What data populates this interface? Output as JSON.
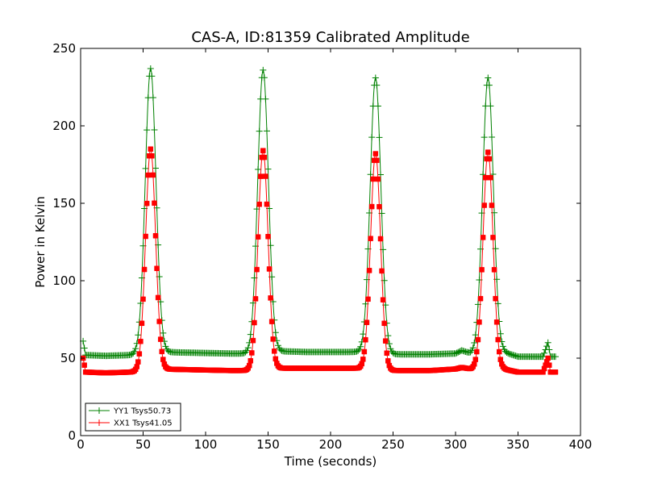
{
  "chart_data": {
    "type": "line",
    "title": "CAS-A, ID:81359 Calibrated Amplitude",
    "xlabel": "Time (seconds)",
    "ylabel": "Power in Kelvin",
    "xlim": [
      0,
      400
    ],
    "ylim": [
      0,
      250
    ],
    "xticks": [
      "0",
      "50",
      "100",
      "150",
      "200",
      "250",
      "300",
      "350",
      "400"
    ],
    "yticks": [
      "0",
      "50",
      "100",
      "150",
      "200",
      "250"
    ],
    "grid": false,
    "legend_position": "lower-left",
    "series": [
      {
        "name": "YY1 Tsys50.73",
        "color": "#008000",
        "marker": "plus",
        "baseline": [
          [
            2,
            61
          ],
          [
            4,
            52
          ],
          [
            20,
            51.5
          ],
          [
            40,
            52
          ],
          [
            50,
            53
          ],
          [
            62,
            54
          ],
          [
            90,
            53.5
          ],
          [
            120,
            53
          ],
          [
            135,
            53
          ],
          [
            158,
            54.5
          ],
          [
            180,
            54
          ],
          [
            220,
            54
          ],
          [
            248,
            52.5
          ],
          [
            280,
            52.5
          ],
          [
            300,
            53
          ],
          [
            305,
            55
          ],
          [
            312,
            53
          ],
          [
            338,
            54
          ],
          [
            350,
            51
          ],
          [
            370,
            51
          ],
          [
            374,
            60
          ],
          [
            376,
            51
          ],
          [
            380,
            51
          ]
        ],
        "peaks": [
          {
            "center": 56,
            "amplitude": 237,
            "width": 4.3
          },
          {
            "center": 146,
            "amplitude": 236,
            "width": 4.3
          },
          {
            "center": 236,
            "amplitude": 231,
            "width": 4.3
          },
          {
            "center": 326,
            "amplitude": 231,
            "width": 4.3
          }
        ]
      },
      {
        "name": "XX1 Tsys41.05",
        "color": "#ff0000",
        "marker": "square",
        "baseline": [
          [
            2,
            50
          ],
          [
            4,
            41
          ],
          [
            20,
            40.5
          ],
          [
            40,
            41
          ],
          [
            50,
            41.5
          ],
          [
            62,
            43
          ],
          [
            90,
            42.5
          ],
          [
            120,
            42
          ],
          [
            135,
            42
          ],
          [
            158,
            43.5
          ],
          [
            180,
            43.5
          ],
          [
            220,
            43.5
          ],
          [
            248,
            42
          ],
          [
            280,
            42
          ],
          [
            300,
            43
          ],
          [
            305,
            44
          ],
          [
            312,
            43
          ],
          [
            338,
            43
          ],
          [
            350,
            41
          ],
          [
            370,
            41
          ],
          [
            374,
            50
          ],
          [
            376,
            41
          ],
          [
            380,
            41
          ]
        ],
        "peaks": [
          {
            "center": 56,
            "amplitude": 185,
            "width": 4.0
          },
          {
            "center": 146,
            "amplitude": 184,
            "width": 4.0
          },
          {
            "center": 236,
            "amplitude": 182,
            "width": 4.0
          },
          {
            "center": 326,
            "amplitude": 183,
            "width": 4.0
          }
        ]
      }
    ]
  }
}
